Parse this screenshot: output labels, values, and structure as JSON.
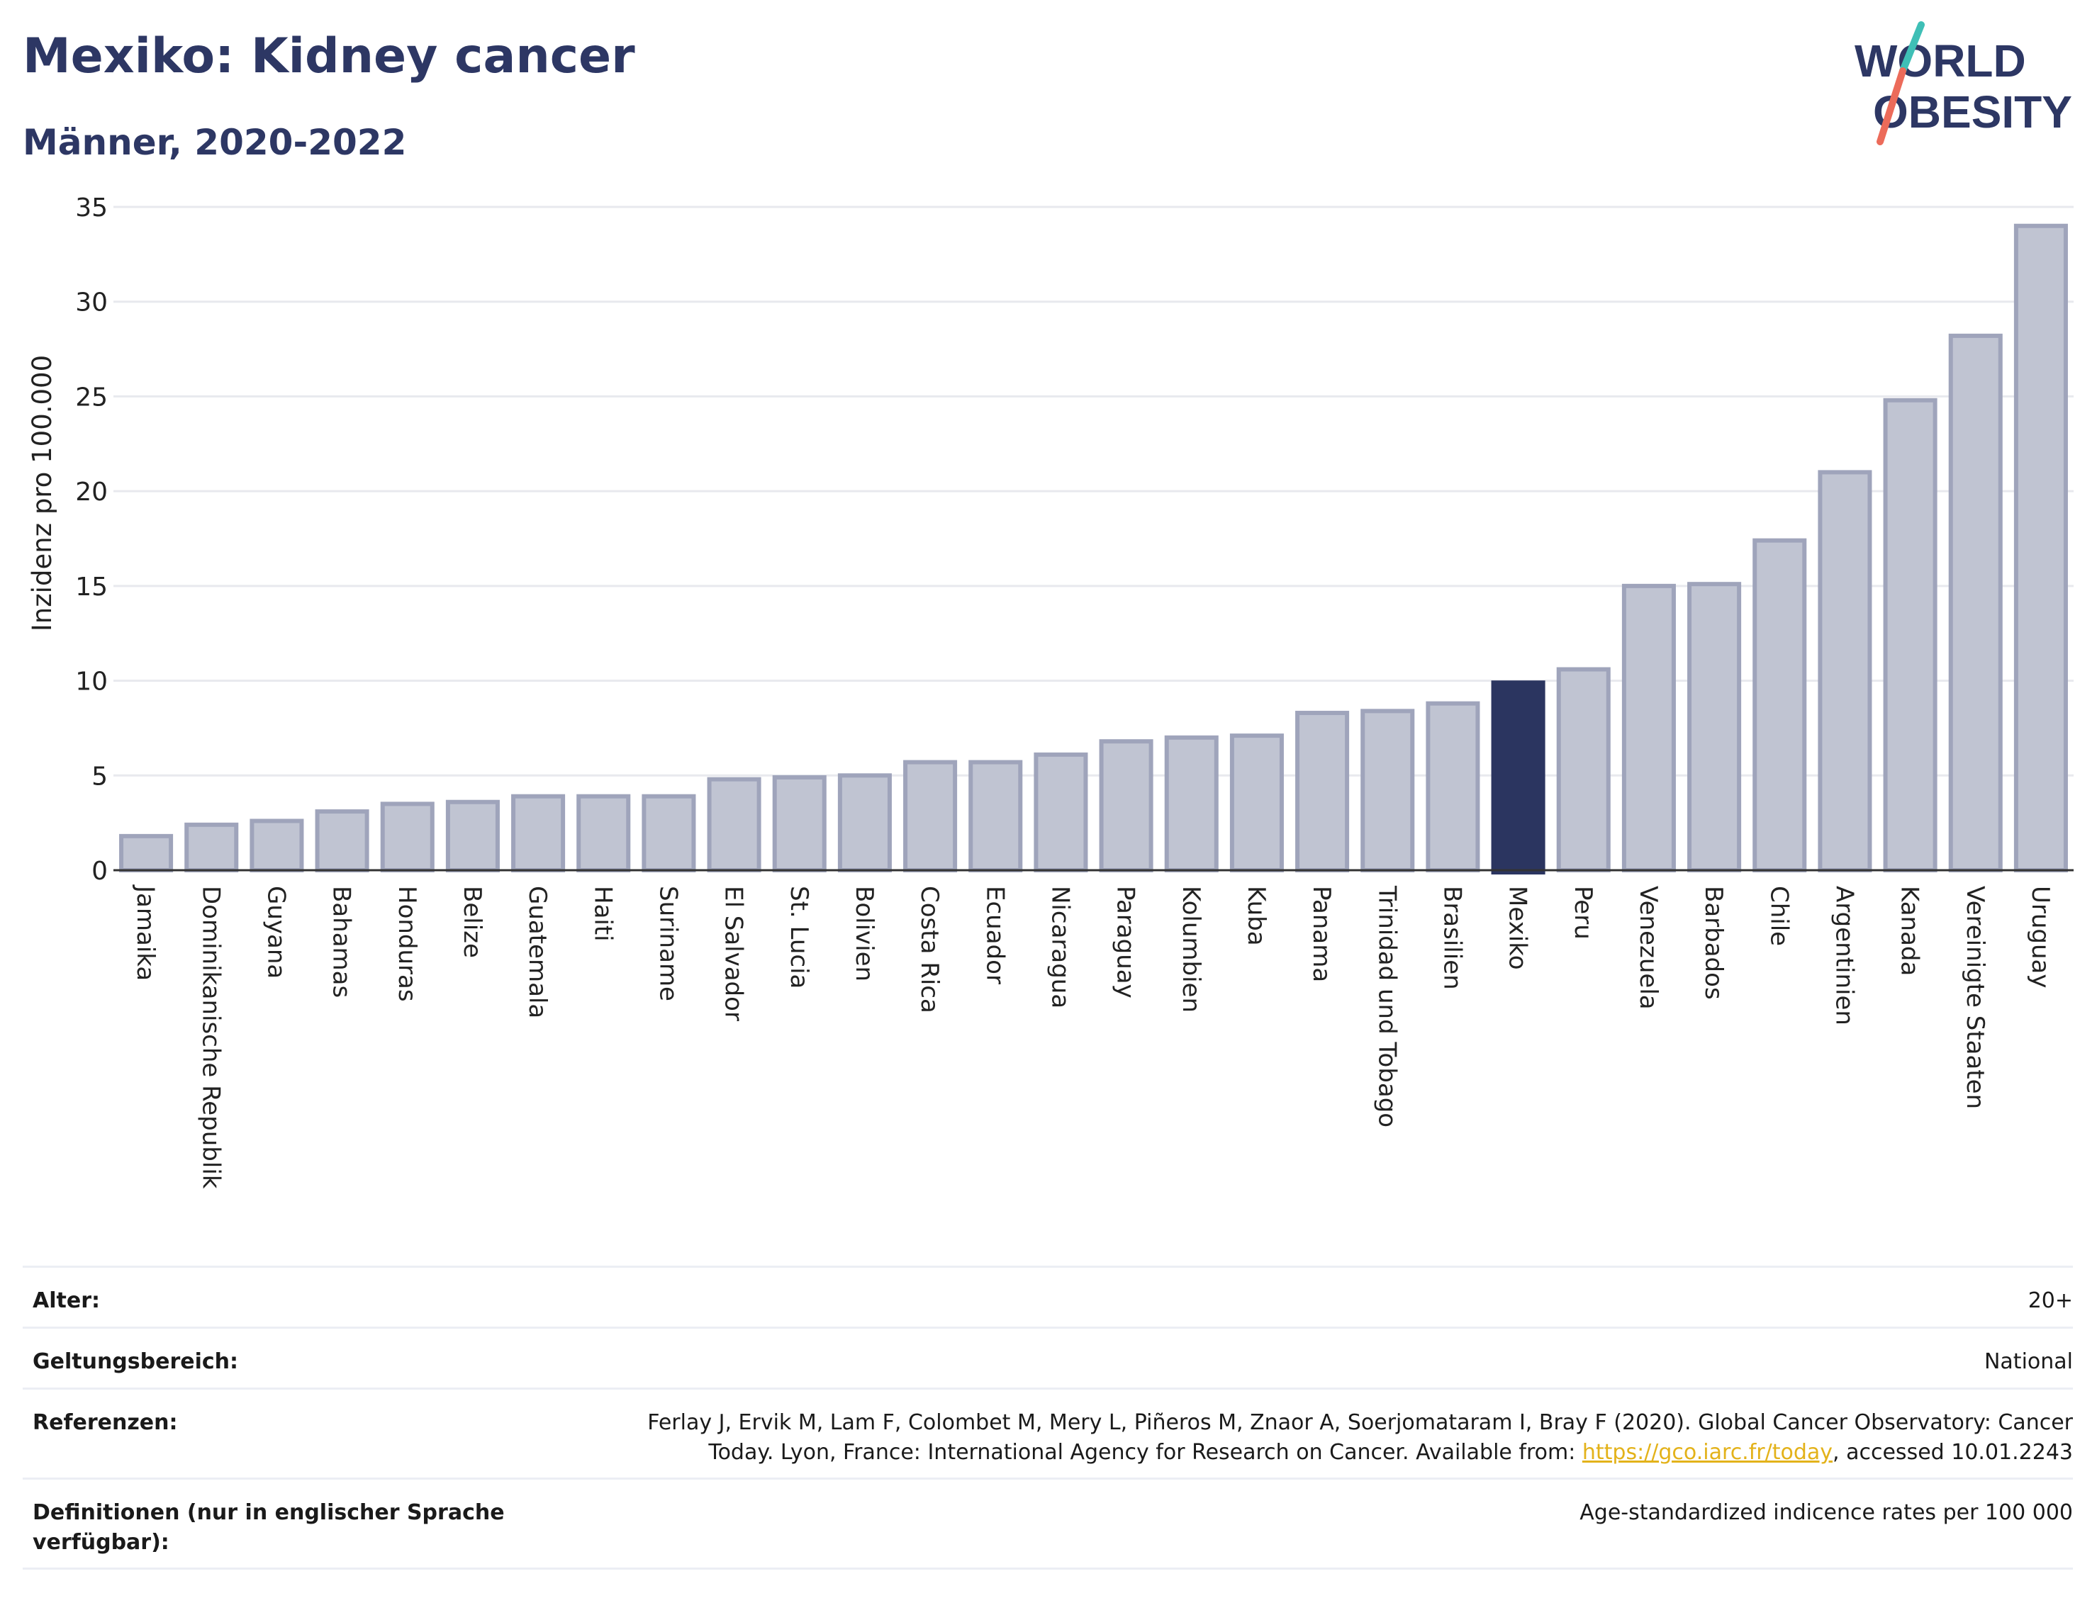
{
  "header": {
    "title": "Mexiko: Kidney cancer",
    "subtitle": "Männer, 2020-2022"
  },
  "logo": {
    "line1": "WORLD",
    "line2": "OBESITY",
    "colors": {
      "text": "#2d3764",
      "slash_top": "#3fbfb6",
      "slash_bottom": "#ec6b5a"
    }
  },
  "colors": {
    "bar_default": "#c0c4d2",
    "bar_default_stroke": "#9fa4bb",
    "bar_highlight": "#2b3560",
    "grid": "#e8e9ee",
    "axis_text": "#222222"
  },
  "chart_data": {
    "type": "bar",
    "ylabel": "Inzidenz pro 100.000",
    "ylim": [
      0,
      35
    ],
    "yticks": [
      0,
      5,
      10,
      15,
      20,
      25,
      30,
      35
    ],
    "highlight": "Mexiko",
    "grid": true,
    "categories": [
      "Jamaika",
      "Dominikanische Republik",
      "Guyana",
      "Bahamas",
      "Honduras",
      "Belize",
      "Guatemala",
      "Haiti",
      "Suriname",
      "El Salvador",
      "St. Lucia",
      "Bolivien",
      "Costa Rica",
      "Ecuador",
      "Nicaragua",
      "Paraguay",
      "Kolumbien",
      "Kuba",
      "Panama",
      "Trinidad und Tobago",
      "Brasilien",
      "Mexiko",
      "Peru",
      "Venezuela",
      "Barbados",
      "Chile",
      "Argentinien",
      "Kanada",
      "Vereinigte Staaten",
      "Uruguay"
    ],
    "values": [
      1.8,
      2.4,
      2.6,
      3.1,
      3.5,
      3.6,
      3.9,
      3.9,
      3.9,
      4.8,
      4.9,
      5.0,
      5.7,
      5.7,
      6.1,
      6.8,
      7.0,
      7.1,
      8.3,
      8.4,
      8.8,
      9.9,
      10.6,
      15.0,
      15.1,
      17.4,
      21.0,
      24.8,
      28.2,
      34.0
    ]
  },
  "meta": {
    "age_label": "Alter:",
    "age_value": "20+",
    "scope_label": "Geltungsbereich:",
    "scope_value": "National",
    "ref_label": "Referenzen:",
    "ref_text_1": "Ferlay J, Ervik M, Lam F, Colombet M, Mery L, Piñeros M, Znaor A, Soerjomataram I, Bray F (2020). Global Cancer Observatory: Cancer",
    "ref_text_2": "Today. Lyon, France: International Agency for Research on Cancer. Available from: ",
    "ref_link": "https://gco.iarc.fr/today",
    "ref_text_3": ", accessed 10.01.2243",
    "def_label": "Definitionen (nur in englischer Sprache verfügbar):",
    "def_value": "Age-standardized indicence rates per 100 000"
  }
}
